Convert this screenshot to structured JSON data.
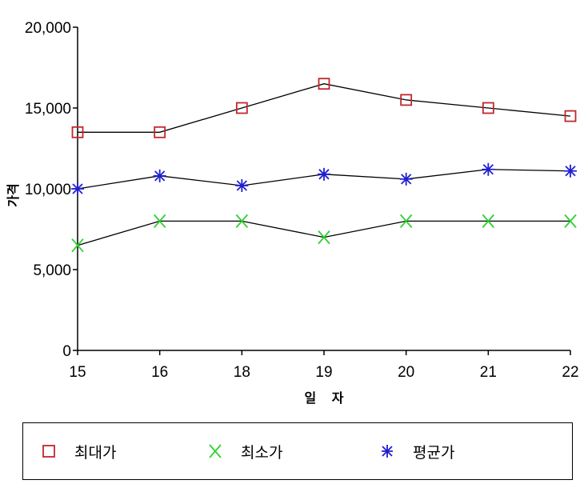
{
  "chart_data": {
    "type": "line",
    "categories": [
      "15",
      "16",
      "18",
      "19",
      "20",
      "21",
      "22"
    ],
    "series": [
      {
        "name": "최대가",
        "values": [
          13500,
          13500,
          15000,
          16500,
          15500,
          15000,
          14500
        ],
        "color": "#c0282d",
        "marker": "square"
      },
      {
        "name": "최소가",
        "values": [
          6500,
          8000,
          8000,
          7000,
          8000,
          8000,
          8000
        ],
        "color": "#2fd12f",
        "marker": "x"
      },
      {
        "name": "평균가",
        "values": [
          10000,
          10800,
          10200,
          10900,
          10600,
          11200,
          11100
        ],
        "color": "#1f1fd0",
        "marker": "asterisk"
      }
    ],
    "yticks": [
      "0",
      "5,000",
      "10,000",
      "15,000",
      "20,000"
    ],
    "ylim": [
      0,
      20000
    ],
    "xlabel": "일 자",
    "ylabel": "가격",
    "line_color": "#000000",
    "legend_position": "bottom"
  }
}
